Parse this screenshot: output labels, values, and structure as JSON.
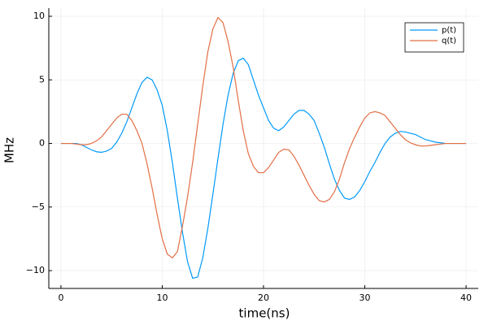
{
  "chart_data": {
    "type": "line",
    "xlabel": "time(ns)",
    "ylabel": "MHz",
    "x": [
      0,
      0.5,
      1,
      1.5,
      2,
      2.5,
      3,
      3.5,
      4,
      4.5,
      5,
      5.5,
      6,
      6.5,
      7,
      7.5,
      8,
      8.5,
      9,
      9.5,
      10,
      10.5,
      11,
      11.5,
      12,
      12.5,
      13,
      13.5,
      14,
      14.5,
      15,
      15.5,
      16,
      16.5,
      17,
      17.5,
      18,
      18.5,
      19,
      19.5,
      20,
      20.5,
      21,
      21.5,
      22,
      22.5,
      23,
      23.5,
      24,
      24.5,
      25,
      25.5,
      26,
      26.5,
      27,
      27.5,
      28,
      28.5,
      29,
      29.5,
      30,
      30.5,
      31,
      31.5,
      32,
      32.5,
      33,
      33.5,
      34,
      34.5,
      35,
      35.5,
      36,
      36.5,
      37,
      37.5,
      38,
      38.5,
      39,
      39.5,
      40
    ],
    "series": [
      {
        "name": "p(t)",
        "color": "#009af9",
        "values": [
          0,
          0,
          0,
          0,
          -0.1,
          -0.3,
          -0.5,
          -0.65,
          -0.7,
          -0.6,
          -0.4,
          0.1,
          0.8,
          1.7,
          2.8,
          3.9,
          4.8,
          5.2,
          5.0,
          4.2,
          3.0,
          1.0,
          -1.5,
          -4.3,
          -7,
          -9.3,
          -10.6,
          -10.5,
          -9,
          -6.7,
          -4,
          -1.2,
          1.5,
          3.8,
          5.5,
          6.5,
          6.7,
          6.2,
          5,
          3.8,
          2.8,
          1.8,
          1.2,
          1.0,
          1.3,
          1.8,
          2.3,
          2.6,
          2.6,
          2.3,
          1.8,
          0.8,
          -0.3,
          -1.6,
          -2.8,
          -3.7,
          -4.3,
          -4.4,
          -4.2,
          -3.7,
          -3,
          -2.2,
          -1.5,
          -0.7,
          0,
          0.5,
          0.8,
          0.95,
          0.9,
          0.8,
          0.7,
          0.5,
          0.3,
          0.2,
          0.1,
          0.05,
          0,
          0,
          0,
          0,
          0
        ]
      },
      {
        "name": "q(t)",
        "color": "#e26f46",
        "values": [
          0,
          0,
          0,
          -0.05,
          -0.1,
          -0.1,
          0,
          0.2,
          0.5,
          1.0,
          1.5,
          2.0,
          2.3,
          2.3,
          1.8,
          1.0,
          0,
          -1.6,
          -3.5,
          -5.6,
          -7.5,
          -8.7,
          -9,
          -8.5,
          -6.5,
          -4.2,
          -1.5,
          1.5,
          4.5,
          7.2,
          9,
          9.9,
          9.5,
          8.0,
          6,
          3.4,
          1,
          -0.8,
          -1.8,
          -2.3,
          -2.3,
          -1.9,
          -1.3,
          -0.7,
          -0.45,
          -0.5,
          -1,
          -1.7,
          -2.5,
          -3.3,
          -4,
          -4.5,
          -4.6,
          -4.4,
          -3.8,
          -2.8,
          -1.5,
          -0.4,
          0.5,
          1.3,
          2,
          2.4,
          2.5,
          2.4,
          2.2,
          1.7,
          1.2,
          0.7,
          0.3,
          0.05,
          -0.1,
          -0.2,
          -0.2,
          -0.15,
          -0.1,
          -0.05,
          0,
          0,
          0,
          0,
          0
        ]
      }
    ],
    "xlim": [
      -1.2,
      41.2
    ],
    "xticks": [
      0,
      10,
      20,
      30,
      40
    ],
    "ylim": [
      -11.4,
      10.64
    ],
    "yticks": [
      {
        "value": -10,
        "label": "−10"
      },
      {
        "value": -5,
        "label": "−5"
      },
      0,
      5,
      10
    ],
    "grid": true,
    "legend": "top-right"
  }
}
